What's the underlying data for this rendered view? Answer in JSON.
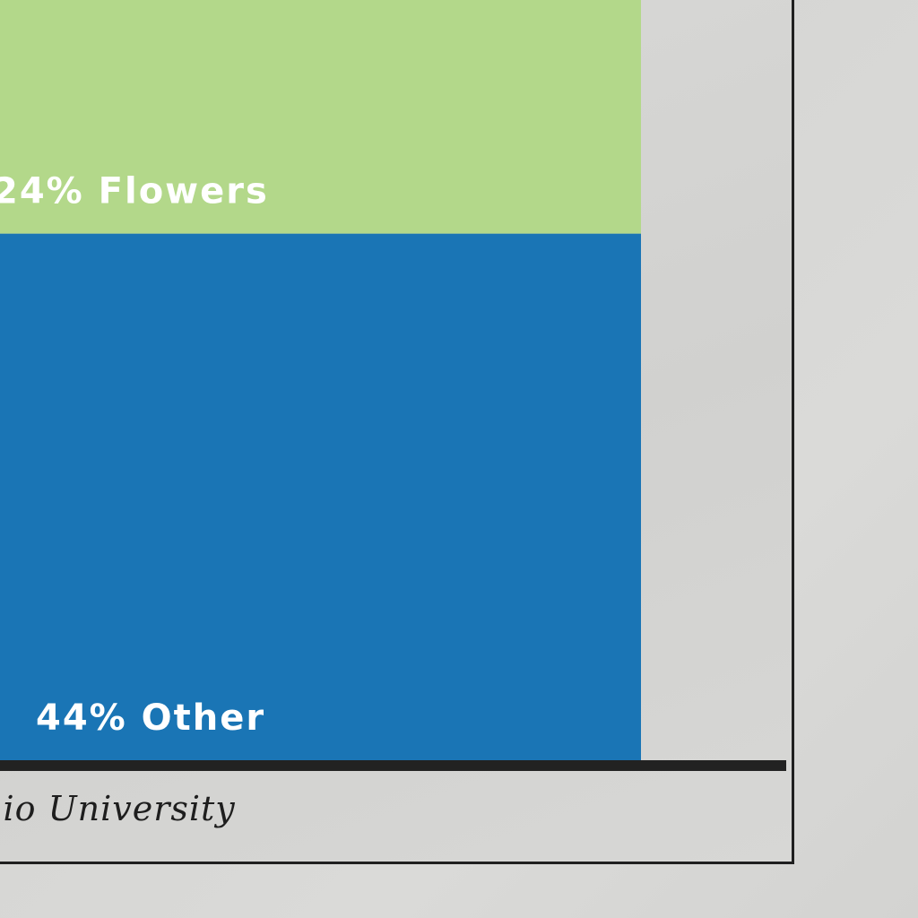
{
  "chart_data": {
    "type": "bar",
    "stacked": true,
    "orientation": "vertical",
    "segments": [
      {
        "label": "24% Flowers",
        "percent": 24,
        "color": "#b3d88a"
      },
      {
        "label": "44% Other",
        "percent": 44,
        "color": "#1a75b5"
      }
    ]
  },
  "footer": {
    "text": "hio University"
  },
  "colors": {
    "background": "#d8d8d6",
    "frame": "#1f1f1f",
    "baseline": "#222222"
  }
}
